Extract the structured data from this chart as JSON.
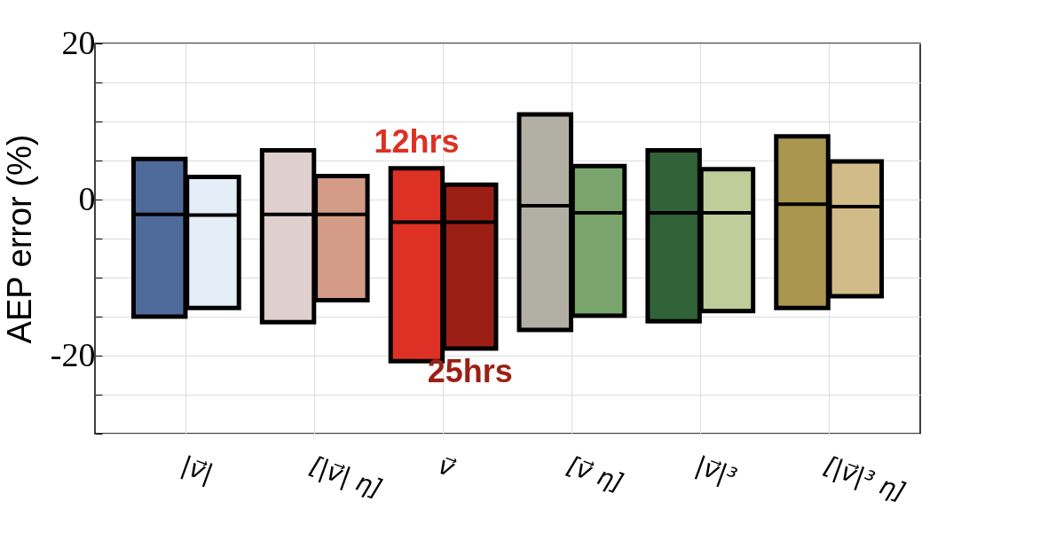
{
  "chart_data": {
    "type": "box",
    "ylabel": "AEP error (%)",
    "categories": [
      "|v⃗|",
      "[|v⃗| η]",
      "v⃗",
      "[v⃗ η]",
      "|v⃗|³",
      "[|v⃗|³ η]"
    ],
    "series": [
      {
        "name": "12hrs",
        "colors": [
          "#4f6b9b",
          "#dfcfcf",
          "#dc3124",
          "#b2b0a4",
          "#316238",
          "#ab9650"
        ],
        "boxes": [
          {
            "low": -15.0,
            "q1": -15.0,
            "median": -1.9,
            "q3": 5.2,
            "high": 5.2
          },
          {
            "low": -15.7,
            "q1": -15.7,
            "median": -1.9,
            "q3": 6.3,
            "high": 6.3
          },
          {
            "low": -20.7,
            "q1": -20.7,
            "median": -2.9,
            "q3": 4.0,
            "high": 4.0
          },
          {
            "low": -16.7,
            "q1": -16.7,
            "median": -0.8,
            "q3": 10.9,
            "high": 10.9
          },
          {
            "low": -15.6,
            "q1": -15.6,
            "median": -1.7,
            "q3": 6.3,
            "high": 6.3
          },
          {
            "low": -13.9,
            "q1": -13.9,
            "median": -0.6,
            "q3": 8.1,
            "high": 8.1
          }
        ]
      },
      {
        "name": "25hrs",
        "colors": [
          "#e5edf9",
          "#d49c86",
          "#9c1f15",
          "#7aa66d",
          "#bfcd9a",
          "#d1bb88"
        ],
        "boxes": [
          {
            "low": -13.9,
            "q1": -13.9,
            "median": -2.0,
            "q3": 2.9,
            "high": 2.9
          },
          {
            "low": -12.9,
            "q1": -12.9,
            "median": -1.9,
            "q3": 3.0,
            "high": 3.0
          },
          {
            "low": -19.1,
            "q1": -19.1,
            "median": -2.9,
            "q3": 1.9,
            "high": 1.9
          },
          {
            "low": -14.9,
            "q1": -14.9,
            "median": -1.7,
            "q3": 4.3,
            "high": 4.3
          },
          {
            "low": -14.3,
            "q1": -14.3,
            "median": -1.7,
            "q3": 3.9,
            "high": 3.9
          },
          {
            "low": -12.4,
            "q1": -12.4,
            "median": -0.9,
            "q3": 4.9,
            "high": 4.9
          }
        ]
      }
    ],
    "ylim": [
      -30,
      20
    ],
    "yticks": [
      {
        "value": -30,
        "label": null
      },
      {
        "value": -25,
        "label": null
      },
      -20,
      {
        "value": -15,
        "label": null
      },
      {
        "value": -10,
        "label": null
      },
      {
        "value": -5,
        "label": null
      },
      0,
      {
        "value": 5,
        "label": null
      },
      {
        "value": 10,
        "label": null
      },
      {
        "value": 15,
        "label": null
      },
      20
    ],
    "grid": true
  }
}
